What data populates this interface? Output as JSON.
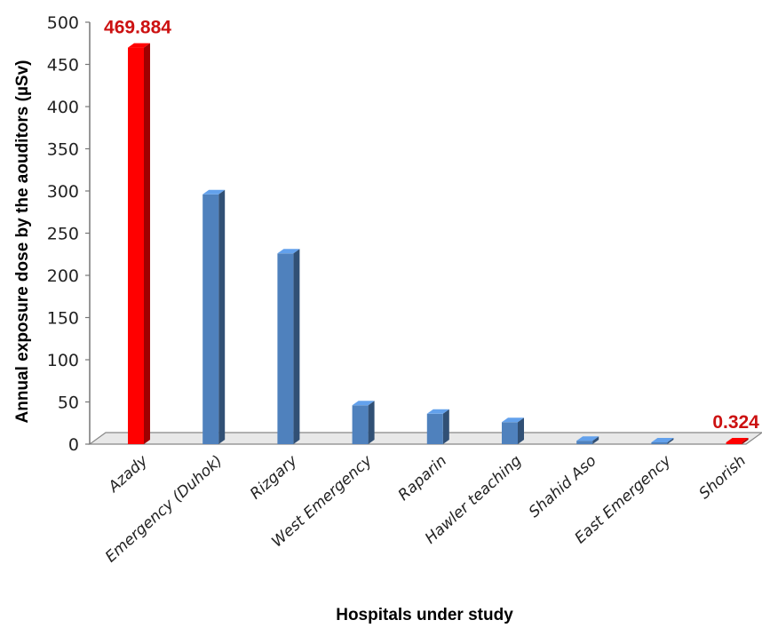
{
  "chart_data": {
    "type": "bar",
    "title": "",
    "xlabel": "Hospitals under study",
    "ylabel": "Annual exposure dose by the aouditors  (µSv)",
    "ylim": [
      0,
      500
    ],
    "yticks": [
      0,
      50,
      100,
      150,
      200,
      250,
      300,
      350,
      400,
      450,
      500
    ],
    "categories": [
      "Azady",
      "Emergency (Duhok)",
      "Rizgary",
      "West Emergency",
      "Raparin",
      "Hawler teaching",
      "Shahid Aso",
      "East Emergency",
      "Shorish"
    ],
    "values": [
      469.884,
      296,
      226,
      46,
      36,
      26,
      4,
      1.5,
      0.324
    ],
    "data_labels": [
      {
        "category": "Azady",
        "text": "469.884"
      },
      {
        "category": "Shorish",
        "text": "0.324"
      }
    ],
    "highlighted": [
      "Azady",
      "Shorish"
    ],
    "grid": false,
    "legend": "none",
    "colors": {
      "bar": "#4f81bd",
      "highlight": "#ff0000",
      "data_label": "#cc1111"
    }
  }
}
